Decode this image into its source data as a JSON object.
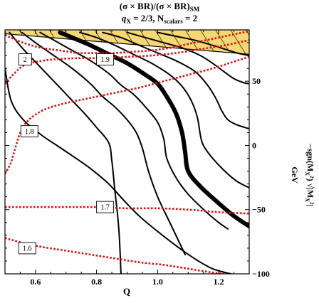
{
  "chart_data": {
    "type": "contour",
    "title_line1": "(σ × BR)/(σ × BR)",
    "title_line1_sub": "SM",
    "title_line2_a": "q",
    "title_line2_a_sub": "X",
    "title_line2_b": " = 2/3, N",
    "title_line2_b_sub": "scalars",
    "title_line2_c": " = 2",
    "xlabel": "Q",
    "ylabel_unit": "GeV",
    "ylabel_main": "−sgn(M",
    "ylabel_x": "X",
    "ylabel_rest": "²) √|M",
    "ylabel_end": "²|",
    "xlim": [
      0.5,
      1.3
    ],
    "ylim": [
      -100,
      90
    ],
    "xticks": [
      {
        "value": 0.6,
        "label": "0.6"
      },
      {
        "value": 0.8,
        "label": "0.8"
      },
      {
        "value": 1.0,
        "label": "1.0"
      },
      {
        "value": 1.2,
        "label": "1.2"
      }
    ],
    "yticks": [
      {
        "value": 50,
        "label": "50"
      },
      {
        "value": 0,
        "label": "0"
      },
      {
        "value": -50,
        "label": "−50"
      },
      {
        "value": -100,
        "label": "−100"
      }
    ],
    "colors": {
      "excluded_fill": "#f5d774",
      "excluded_hatch": "#3a3000",
      "black_contour": "#000000",
      "red_contour": "#e01010"
    },
    "excluded_region": [
      [
        0.5,
        90
      ],
      [
        1.3,
        90
      ],
      [
        1.3,
        71
      ],
      [
        0.5,
        87
      ]
    ],
    "black_contours": [
      {
        "name": "k1",
        "width": 2.0,
        "points": [
          [
            0.5,
            60
          ],
          [
            0.52,
            35
          ],
          [
            0.56,
            20
          ],
          [
            0.62,
            8
          ],
          [
            0.67,
            0
          ],
          [
            0.72,
            -8
          ],
          [
            0.78,
            -18
          ],
          [
            0.84,
            -30
          ],
          [
            0.89,
            -43
          ],
          [
            0.94,
            -55
          ],
          [
            1.0,
            -67
          ],
          [
            1.06,
            -78
          ],
          [
            1.12,
            -88
          ],
          [
            1.18,
            -96
          ],
          [
            1.24,
            -100
          ]
        ]
      },
      {
        "name": "k2",
        "width": 2.0,
        "points": [
          [
            0.515,
            88
          ],
          [
            0.56,
            75
          ],
          [
            0.62,
            60
          ],
          [
            0.68,
            45
          ],
          [
            0.72,
            35
          ],
          [
            0.76,
            25
          ],
          [
            0.8,
            14
          ],
          [
            0.84,
            2
          ],
          [
            0.85,
            -12
          ],
          [
            0.86,
            -35
          ],
          [
            0.87,
            -57
          ],
          [
            0.875,
            -73
          ],
          [
            0.88,
            -100
          ]
        ]
      },
      {
        "name": "k3",
        "width": 2.0,
        "points": [
          [
            0.555,
            88
          ],
          [
            0.6,
            80
          ],
          [
            0.66,
            70
          ],
          [
            0.72,
            60
          ],
          [
            0.78,
            48
          ],
          [
            0.82,
            38
          ],
          [
            0.86,
            30
          ],
          [
            0.9,
            20
          ],
          [
            0.93,
            10
          ],
          [
            0.95,
            -2
          ],
          [
            0.97,
            -20
          ],
          [
            1.0,
            -40
          ],
          [
            1.04,
            -60
          ],
          [
            1.07,
            -75
          ],
          [
            1.09,
            -85
          ]
        ]
      },
      {
        "name": "k4",
        "width": 2.0,
        "points": [
          [
            0.615,
            88
          ],
          [
            0.66,
            82
          ],
          [
            0.72,
            74
          ],
          [
            0.78,
            66
          ],
          [
            0.84,
            56
          ],
          [
            0.88,
            47
          ],
          [
            0.92,
            40
          ],
          [
            0.96,
            30
          ],
          [
            1.0,
            18
          ],
          [
            1.02,
            5
          ],
          [
            1.03,
            -10
          ],
          [
            1.06,
            -25
          ],
          [
            1.1,
            -38
          ],
          [
            1.16,
            -52
          ],
          [
            1.2,
            -60
          ],
          [
            1.23,
            -65
          ]
        ]
      },
      {
        "name": "k-bold",
        "width": 6.0,
        "points": [
          [
            0.68,
            88
          ],
          [
            0.72,
            84
          ],
          [
            0.78,
            78
          ],
          [
            0.84,
            71
          ],
          [
            0.9,
            64
          ],
          [
            0.96,
            55
          ],
          [
            1.0,
            48
          ],
          [
            1.03,
            38
          ],
          [
            1.06,
            25
          ],
          [
            1.08,
            10
          ],
          [
            1.09,
            -5
          ],
          [
            1.1,
            -20
          ],
          [
            1.14,
            -32
          ],
          [
            1.2,
            -45
          ],
          [
            1.25,
            -55
          ],
          [
            1.3,
            -63
          ]
        ]
      },
      {
        "name": "k6",
        "width": 2.0,
        "points": [
          [
            0.745,
            88
          ],
          [
            0.8,
            84
          ],
          [
            0.86,
            78
          ],
          [
            0.92,
            71
          ],
          [
            0.98,
            64
          ],
          [
            1.04,
            55
          ],
          [
            1.08,
            46
          ],
          [
            1.11,
            35
          ],
          [
            1.13,
            22
          ],
          [
            1.14,
            8
          ],
          [
            1.15,
            0
          ],
          [
            1.18,
            -10
          ],
          [
            1.22,
            -20
          ],
          [
            1.26,
            -28
          ],
          [
            1.3,
            -33
          ]
        ]
      },
      {
        "name": "k7",
        "width": 2.0,
        "points": [
          [
            0.82,
            88
          ],
          [
            0.88,
            84
          ],
          [
            0.94,
            78
          ],
          [
            1.0,
            72
          ],
          [
            1.06,
            66
          ],
          [
            1.12,
            58
          ],
          [
            1.16,
            48
          ],
          [
            1.19,
            37
          ],
          [
            1.21,
            27
          ],
          [
            1.23,
            20
          ],
          [
            1.26,
            16
          ],
          [
            1.3,
            13
          ]
        ]
      },
      {
        "name": "k8",
        "width": 2.0,
        "points": [
          [
            0.9,
            88
          ],
          [
            0.96,
            84
          ],
          [
            1.02,
            80
          ],
          [
            1.08,
            76
          ],
          [
            1.14,
            70
          ],
          [
            1.18,
            64
          ],
          [
            1.22,
            57
          ],
          [
            1.25,
            52
          ],
          [
            1.28,
            49
          ],
          [
            1.3,
            48
          ]
        ]
      },
      {
        "name": "k9",
        "width": 2.0,
        "points": [
          [
            1.0,
            88
          ],
          [
            1.06,
            85
          ],
          [
            1.12,
            82
          ],
          [
            1.18,
            78
          ],
          [
            1.22,
            75
          ],
          [
            1.26,
            72
          ],
          [
            1.3,
            70
          ]
        ]
      }
    ],
    "red_contours": [
      {
        "name": "r1",
        "points": [
          [
            0.5,
            86
          ],
          [
            0.56,
            80
          ],
          [
            0.62,
            76
          ],
          [
            0.68,
            74
          ],
          [
            0.74,
            72
          ],
          [
            0.8,
            72
          ],
          [
            0.86,
            72
          ],
          [
            0.92,
            73
          ],
          [
            0.98,
            74
          ],
          [
            1.04,
            76
          ],
          [
            1.1,
            79
          ],
          [
            1.16,
            82
          ],
          [
            1.22,
            85
          ],
          [
            1.3,
            89
          ]
        ]
      },
      {
        "name": "r2",
        "points": [
          [
            0.5,
            48
          ],
          [
            0.53,
            56
          ],
          [
            0.56,
            62
          ],
          [
            0.6,
            65
          ],
          [
            0.66,
            67
          ],
          [
            0.74,
            68
          ],
          [
            0.82,
            68
          ],
          [
            0.9,
            69
          ],
          [
            0.98,
            70
          ],
          [
            1.06,
            72
          ],
          [
            1.14,
            75
          ],
          [
            1.22,
            78
          ],
          [
            1.3,
            82
          ]
        ]
      },
      {
        "name": "r3",
        "points": [
          [
            0.5,
            -22
          ],
          [
            0.51,
            -18
          ],
          [
            0.52,
            -13
          ],
          [
            0.53,
            -5
          ],
          [
            0.54,
            3
          ],
          [
            0.55,
            10
          ],
          [
            0.57,
            18
          ],
          [
            0.6,
            24
          ],
          [
            0.64,
            29
          ],
          [
            0.7,
            33
          ],
          [
            0.78,
            37
          ],
          [
            0.86,
            41
          ],
          [
            0.94,
            45
          ],
          [
            1.02,
            50
          ],
          [
            1.1,
            55
          ],
          [
            1.18,
            60
          ],
          [
            1.26,
            66
          ],
          [
            1.3,
            69
          ]
        ]
      },
      {
        "name": "r4",
        "points": [
          [
            0.5,
            -48
          ],
          [
            0.6,
            -48
          ],
          [
            0.7,
            -48
          ],
          [
            0.8,
            -48
          ],
          [
            0.9,
            -49
          ],
          [
            1.0,
            -49
          ],
          [
            1.1,
            -50
          ],
          [
            1.2,
            -52
          ],
          [
            1.3,
            -53
          ]
        ]
      },
      {
        "name": "r5",
        "points": [
          [
            0.5,
            -72
          ],
          [
            0.56,
            -76
          ],
          [
            0.62,
            -79
          ],
          [
            0.7,
            -82
          ],
          [
            0.78,
            -85
          ],
          [
            0.86,
            -88
          ],
          [
            0.94,
            -91
          ],
          [
            1.02,
            -93
          ],
          [
            1.1,
            -96
          ],
          [
            1.18,
            -99
          ],
          [
            1.22,
            -100
          ]
        ]
      }
    ],
    "contour_labels": [
      {
        "text": "2",
        "x": 0.566,
        "y": 67
      },
      {
        "text": "1.9",
        "x": 0.828,
        "y": 67
      },
      {
        "text": "1.8",
        "x": 0.58,
        "y": 11
      },
      {
        "text": "1.7",
        "x": 0.828,
        "y": -48
      },
      {
        "text": "1.6",
        "x": 0.573,
        "y": -80
      }
    ]
  }
}
